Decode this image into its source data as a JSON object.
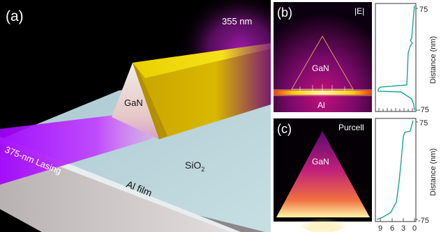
{
  "panel_a": {
    "label": "(a)",
    "excitation": "355 nm",
    "nanowire": "GaN",
    "lasing": "375-nm Lasing",
    "substrate_main": "SiO",
    "substrate_sub": "2",
    "film": "Al film"
  },
  "panel_b": {
    "label": "(b)",
    "quantity": "|E|",
    "gan": "GaN",
    "al": "Al",
    "y_ticks": [
      "75",
      "-75"
    ],
    "y_axis": "Distance (nm)"
  },
  "panel_c": {
    "label": "(c)",
    "quantity": "Purcell",
    "gan": "GaN",
    "y_ticks": [
      "75",
      "-75"
    ],
    "y_axis": "Distance (nm)",
    "x_ticks": [
      "9",
      "6",
      "3",
      "0"
    ]
  }
}
